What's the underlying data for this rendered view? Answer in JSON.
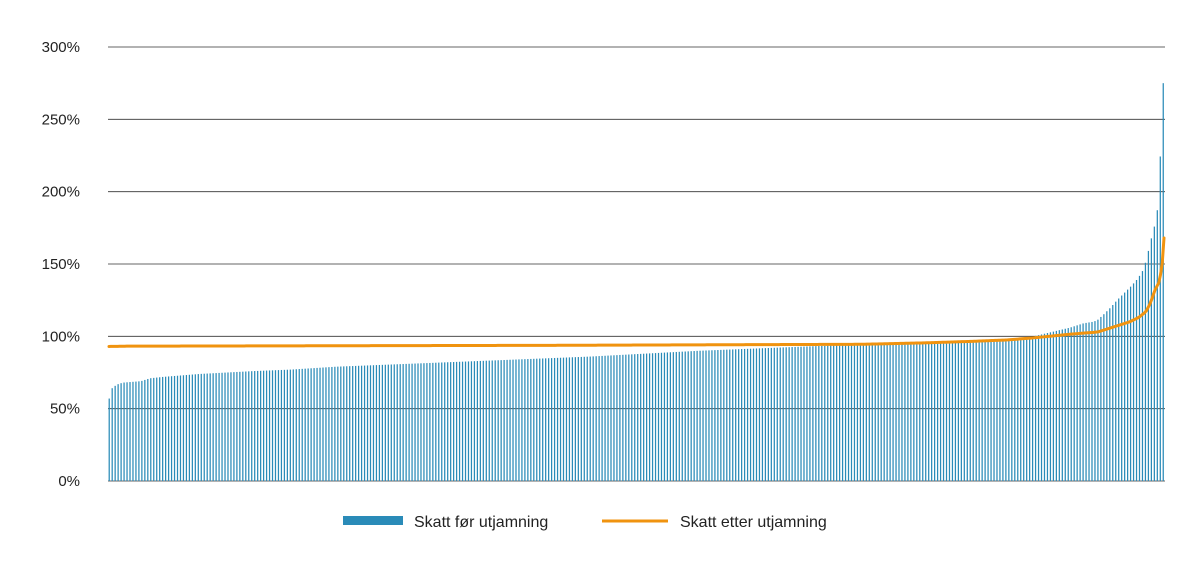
{
  "chart_data": {
    "type": "bar",
    "title": "",
    "xlabel": "",
    "ylabel": "",
    "ylim": [
      0,
      300
    ],
    "y_ticks": [
      "0%",
      "50%",
      "100%",
      "150%",
      "200%",
      "250%",
      "300%"
    ],
    "y_tick_values": [
      0,
      50,
      100,
      150,
      200,
      250,
      300
    ],
    "grid": "horizontal",
    "legend_placement": "bottom-center",
    "colors": {
      "bars": "#2a8bb8",
      "line": "#f0930f",
      "grid": "#333333"
    },
    "category_count": 356,
    "series": [
      {
        "name": "Skatt før utjamning",
        "kind": "bar",
        "anchors": [
          [
            0,
            57
          ],
          [
            1,
            58
          ],
          [
            2,
            63
          ],
          [
            3,
            64
          ],
          [
            5,
            65
          ],
          [
            7,
            66
          ],
          [
            10,
            67
          ],
          [
            15,
            68
          ],
          [
            25,
            68.5
          ],
          [
            35,
            69
          ],
          [
            40,
            70
          ],
          [
            45,
            71
          ],
          [
            60,
            72
          ],
          [
            80,
            73
          ],
          [
            100,
            74
          ],
          [
            130,
            75
          ],
          [
            160,
            76
          ],
          [
            200,
            77
          ],
          [
            250,
            79
          ],
          [
            290,
            80
          ],
          [
            330,
            81
          ],
          [
            370,
            82
          ],
          [
            410,
            83
          ],
          [
            450,
            84
          ],
          [
            490,
            85
          ],
          [
            530,
            86
          ],
          [
            560,
            87
          ],
          [
            590,
            88
          ],
          [
            620,
            89
          ],
          [
            650,
            90
          ],
          [
            690,
            91
          ],
          [
            730,
            92
          ],
          [
            770,
            93
          ],
          [
            810,
            94
          ],
          [
            860,
            95
          ],
          [
            910,
            96
          ],
          [
            960,
            97
          ],
          [
            1000,
            98
          ],
          [
            1020,
            100
          ],
          [
            1040,
            103
          ],
          [
            1060,
            106
          ],
          [
            1075,
            109
          ],
          [
            1085,
            110
          ],
          [
            1090,
            111
          ],
          [
            1097,
            115
          ],
          [
            1105,
            120
          ],
          [
            1112,
            125
          ],
          [
            1120,
            130
          ],
          [
            1128,
            135
          ],
          [
            1135,
            140
          ],
          [
            1140,
            145
          ],
          [
            1143,
            150
          ],
          [
            1147,
            160
          ],
          [
            1150,
            168
          ],
          [
            1153,
            175
          ],
          [
            1155,
            185
          ],
          [
            1157,
            188
          ],
          [
            1160,
            228
          ],
          [
            1163,
            275
          ]
        ]
      },
      {
        "name": "Skatt etter utjamning",
        "kind": "line",
        "anchors": [
          [
            0,
            93
          ],
          [
            20,
            93.2
          ],
          [
            500,
            93.8
          ],
          [
            830,
            94.5
          ],
          [
            900,
            95.5
          ],
          [
            950,
            96.5
          ],
          [
            990,
            97.5
          ],
          [
            1020,
            99
          ],
          [
            1060,
            101.5
          ],
          [
            1090,
            103
          ],
          [
            1110,
            107
          ],
          [
            1125,
            110
          ],
          [
            1135,
            113
          ],
          [
            1143,
            117
          ],
          [
            1148,
            123
          ],
          [
            1153,
            132
          ],
          [
            1158,
            138
          ],
          [
            1161,
            150
          ],
          [
            1163,
            168
          ]
        ]
      }
    ]
  }
}
